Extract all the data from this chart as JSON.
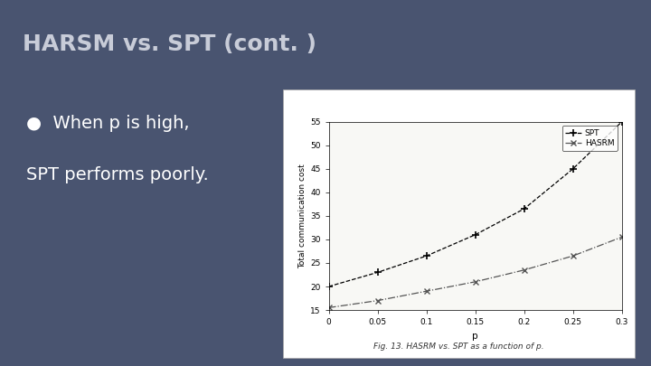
{
  "title": "HARSM vs. SPT (cont. )",
  "bullet_line1": "●  When p is high,",
  "bullet_line2": "SPT performs poorly.",
  "slide_bg": "#495470",
  "title_color": "#c8ccd8",
  "text_color": "#ffffff",
  "chart_bg": "#ffffff",
  "spt_x": [
    0,
    0.05,
    0.1,
    0.15,
    0.2,
    0.25,
    0.3
  ],
  "spt_y": [
    20.0,
    23.0,
    26.5,
    31.0,
    36.5,
    45.0,
    55.0
  ],
  "hasrm_x": [
    0,
    0.05,
    0.1,
    0.15,
    0.2,
    0.25,
    0.3
  ],
  "hasrm_y": [
    15.5,
    17.0,
    19.0,
    21.0,
    23.5,
    26.5,
    30.5
  ],
  "xlabel": "p",
  "ylabel": "Total communication cost",
  "fig_caption": "Fig. 13. HASRM vs. SPT as a function of p.",
  "ylim": [
    15,
    55
  ],
  "xlim": [
    0,
    0.3
  ],
  "yticks": [
    15,
    20,
    25,
    30,
    35,
    40,
    45,
    50,
    55
  ],
  "xticks": [
    0,
    0.05,
    0.1,
    0.15,
    0.2,
    0.25,
    0.3
  ],
  "title_fontsize": 18,
  "bullet_fontsize": 14
}
